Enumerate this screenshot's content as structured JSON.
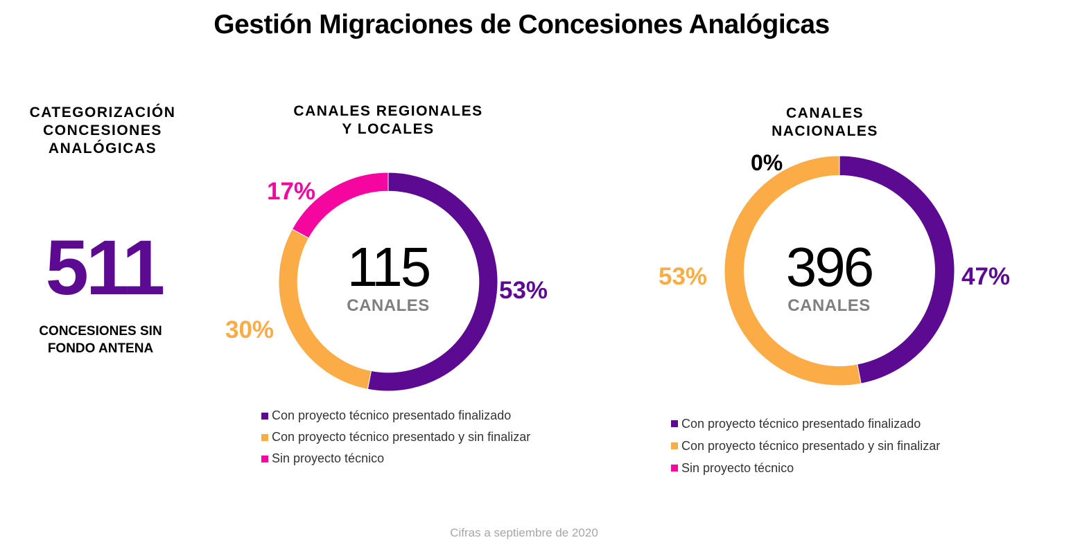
{
  "title": "Gestión Migraciones de Concesiones Analógicas",
  "summary": {
    "heading": [
      "CATEGORIZACIÓN",
      "CONCESIONES",
      "ANALÓGICAS"
    ],
    "number": "511",
    "label": [
      "CONCESIONES SIN",
      "FONDO ANTENA"
    ]
  },
  "colors": {
    "finalizado": "#5b0a91",
    "sin_finalizar": "#fbac47",
    "sin_proyecto": "#f5079f"
  },
  "chart_data": [
    {
      "type": "pie",
      "title": [
        "CANALES REGIONALES",
        "Y LOCALES"
      ],
      "center_value": "115",
      "center_label": "CANALES",
      "categories": [
        "Con proyecto técnico presentado finalizado",
        "Con proyecto técnico presentado y sin finalizar",
        "Sin proyecto técnico"
      ],
      "values": [
        53,
        30,
        17
      ],
      "labels": [
        "53%",
        "30%",
        "17%"
      ]
    },
    {
      "type": "pie",
      "title": [
        "CANALES",
        "NACIONALES"
      ],
      "center_value": "396",
      "center_label": "CANALES",
      "categories": [
        "Con proyecto técnico presentado finalizado",
        "Con proyecto técnico presentado y sin finalizar",
        "Sin proyecto técnico"
      ],
      "values": [
        47,
        53,
        0
      ],
      "labels": [
        "47%",
        "53%",
        "0%"
      ]
    }
  ],
  "footer": "Cifras a septiembre de 2020"
}
